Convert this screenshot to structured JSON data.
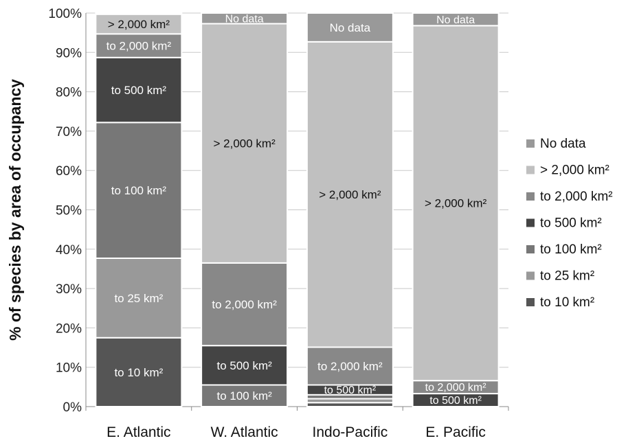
{
  "chart_data": {
    "type": "bar",
    "stacked": true,
    "percent": true,
    "categories": [
      "E. Atlantic",
      "W. Atlantic",
      "Indo-Pacific",
      "E. Pacific"
    ],
    "ylabel": "% of species by area of occupancy",
    "ylim": [
      0,
      100
    ],
    "yticks": [
      "0%",
      "10%",
      "20%",
      "30%",
      "40%",
      "50%",
      "60%",
      "70%",
      "80%",
      "90%",
      "100%"
    ],
    "grid": true,
    "legend": "right",
    "series": [
      {
        "name": "to 10 km²",
        "color": "#555555",
        "values": [
          17.5,
          0,
          1.0,
          0
        ]
      },
      {
        "name": "to 25 km²",
        "color": "#999999",
        "values": [
          20.2,
          0,
          1.0,
          0
        ]
      },
      {
        "name": "to 100 km²",
        "color": "#777777",
        "values": [
          34.5,
          5.5,
          1.0,
          0
        ]
      },
      {
        "name": "to 500 km²",
        "color": "#444444",
        "values": [
          16.5,
          10.0,
          2.5,
          3.3
        ]
      },
      {
        "name": "to 2,000 km²",
        "color": "#888888",
        "values": [
          6.0,
          21.0,
          9.6,
          3.3
        ]
      },
      {
        "name": "> 2,000 km²",
        "color": "#c0c0c0",
        "values": [
          5.0,
          60.8,
          77.6,
          90.2
        ]
      },
      {
        "name": "No data",
        "color": "#999999",
        "values": [
          0.3,
          2.7,
          7.3,
          3.2
        ]
      }
    ],
    "segment_labels": [
      [
        "to 10 km²",
        "to 25 km²",
        "to 100 km²",
        "to 500 km²",
        "to 2,000 km²",
        "> 2,000 km²",
        ""
      ],
      [
        "",
        "",
        "to 100 km²",
        "to 500 km²",
        "to 2,000 km²",
        "> 2,000 km²",
        "No data"
      ],
      [
        "",
        "",
        "",
        "to 500 km²",
        "to 2,000 km²",
        "> 2,000 km²",
        "No data"
      ],
      [
        "",
        "",
        "",
        "to 500 km²",
        "to 2,000 km²",
        "> 2,000 km²",
        "No data"
      ]
    ],
    "legend_order": [
      "No data",
      "> 2,000 km²",
      "to 2,000 km²",
      "to 500 km²",
      "to 100 km²",
      "to 25 km²",
      "to 10 km²"
    ]
  }
}
